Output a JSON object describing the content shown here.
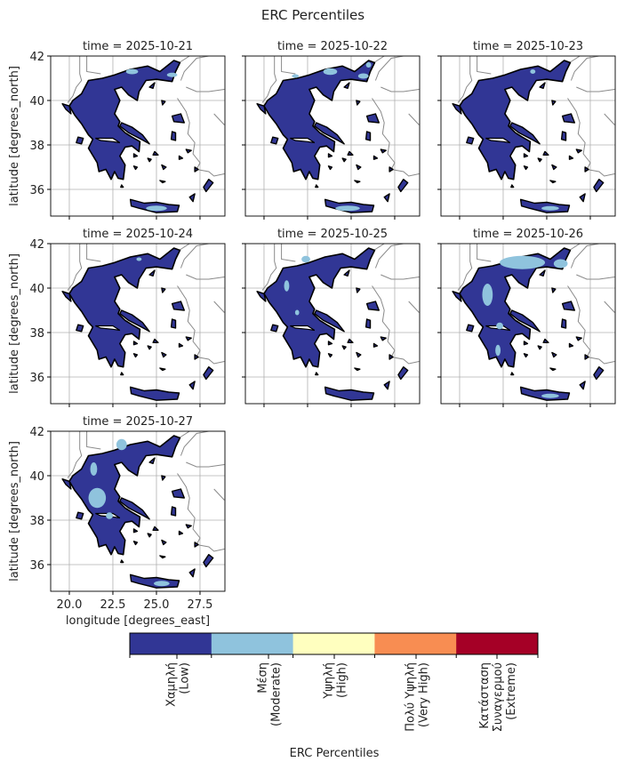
{
  "chart_data": {
    "type": "heatmap",
    "title": "ERC Percentiles",
    "xlabel": "longitude [degrees_east]",
    "ylabel": "latitude [degrees_north]",
    "xlim": [
      18.93,
      28.93
    ],
    "ylim": [
      34.8,
      42.0
    ],
    "xticks": [
      "20.0",
      "22.5",
      "25.0",
      "27.5"
    ],
    "xtick_values": [
      20.0,
      22.5,
      25.0,
      27.5
    ],
    "yticks": [
      "42",
      "40",
      "38",
      "36"
    ],
    "ytick_values": [
      42,
      40,
      38,
      36
    ],
    "grid": true,
    "panels": [
      {
        "title": "time = 2025-10-21",
        "dominant": "Low",
        "moderate_areas": [
          [
            23.6,
            41.3,
            0.35,
            0.12
          ],
          [
            25.9,
            41.15,
            0.3,
            0.1
          ],
          [
            25.0,
            35.15,
            0.6,
            0.12
          ]
        ]
      },
      {
        "title": "time = 2025-10-22",
        "dominant": "Low",
        "moderate_areas": [
          [
            23.8,
            41.3,
            0.4,
            0.15
          ],
          [
            25.7,
            41.1,
            0.3,
            0.12
          ],
          [
            26.0,
            41.6,
            0.15,
            0.12
          ],
          [
            24.8,
            35.15,
            0.7,
            0.12
          ],
          [
            21.8,
            41.1,
            0.2,
            0.08
          ]
        ]
      },
      {
        "title": "time = 2025-10-23",
        "dominant": "Low",
        "moderate_areas": [
          [
            24.2,
            41.3,
            0.15,
            0.1
          ],
          [
            25.2,
            35.15,
            0.5,
            0.1
          ]
        ]
      },
      {
        "title": "time = 2025-10-24",
        "dominant": "Low",
        "moderate_areas": [
          [
            24.0,
            41.3,
            0.15,
            0.08
          ]
        ]
      },
      {
        "title": "time = 2025-10-25",
        "dominant": "Low",
        "moderate_areas": [
          [
            22.4,
            41.3,
            0.25,
            0.15
          ],
          [
            21.3,
            40.1,
            0.15,
            0.25
          ],
          [
            21.9,
            38.9,
            0.12,
            0.12
          ]
        ]
      },
      {
        "title": "time = 2025-10-26",
        "dominant": "Low",
        "moderate_areas": [
          [
            23.6,
            41.15,
            1.3,
            0.3
          ],
          [
            25.8,
            41.1,
            0.4,
            0.2
          ],
          [
            21.6,
            39.7,
            0.3,
            0.5
          ],
          [
            22.3,
            38.3,
            0.2,
            0.15
          ],
          [
            22.2,
            37.2,
            0.15,
            0.25
          ],
          [
            25.2,
            35.15,
            0.5,
            0.1
          ]
        ]
      },
      {
        "title": "time = 2025-10-27",
        "dominant": "Low",
        "moderate_areas": [
          [
            23.0,
            41.4,
            0.3,
            0.25
          ],
          [
            21.4,
            40.3,
            0.2,
            0.3
          ],
          [
            21.6,
            39.0,
            0.5,
            0.45
          ],
          [
            22.3,
            38.2,
            0.2,
            0.15
          ],
          [
            25.3,
            35.15,
            0.45,
            0.12
          ]
        ]
      }
    ],
    "colorbar": {
      "label": "ERC Percentiles",
      "categories": [
        {
          "lines": [
            "Χαμηλή",
            "(Low)"
          ],
          "color": "#313695"
        },
        {
          "lines": [
            "Μέση",
            "(Moderate)"
          ],
          "color": "#8fc3dd"
        },
        {
          "lines": [
            "Υψηλή",
            "(High)"
          ],
          "color": "#ffffbf"
        },
        {
          "lines": [
            "Πολύ Υψηλή",
            "(Very High)"
          ],
          "color": "#f88d52"
        },
        {
          "lines": [
            "Κατάσταση",
            "Συναγερμού",
            "(Extreme)"
          ],
          "color": "#a50026"
        }
      ]
    }
  }
}
